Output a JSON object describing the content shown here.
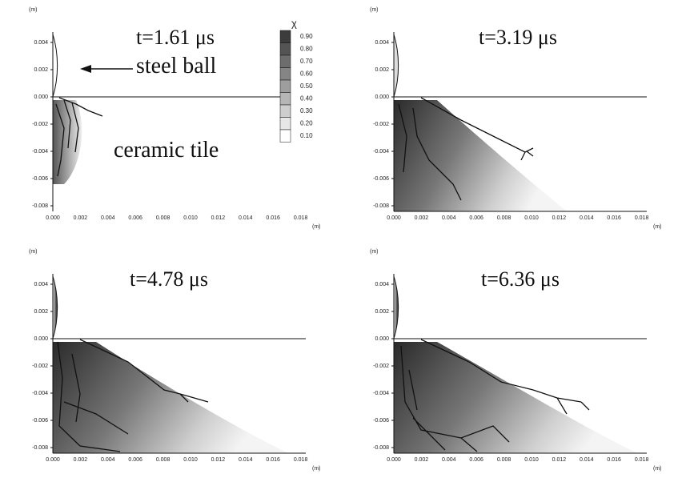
{
  "panels": [
    {
      "time": "t=1.61 μs"
    },
    {
      "time": "t=3.19 μs"
    },
    {
      "time": "t=4.78 μs"
    },
    {
      "time": "t=6.36 μs"
    }
  ],
  "axis_unit": "(m)",
  "y_ticks": [
    "0.004",
    "0.002",
    "0.000",
    "-0.002",
    "-0.004",
    "-0.006",
    "-0.008"
  ],
  "x_ticks": [
    "0.000",
    "0.002",
    "0.004",
    "0.006",
    "0.008",
    "0.010",
    "0.012",
    "0.014",
    "0.016",
    "0.018"
  ],
  "annotations": {
    "steel_ball": "steel ball",
    "ceramic_tile": "ceramic tile"
  },
  "colorbar": {
    "symbol": "χ",
    "labels": [
      "0.90",
      "0.80",
      "0.70",
      "0.60",
      "0.50",
      "0.40",
      "0.30",
      "0.20",
      "0.10"
    ]
  }
}
